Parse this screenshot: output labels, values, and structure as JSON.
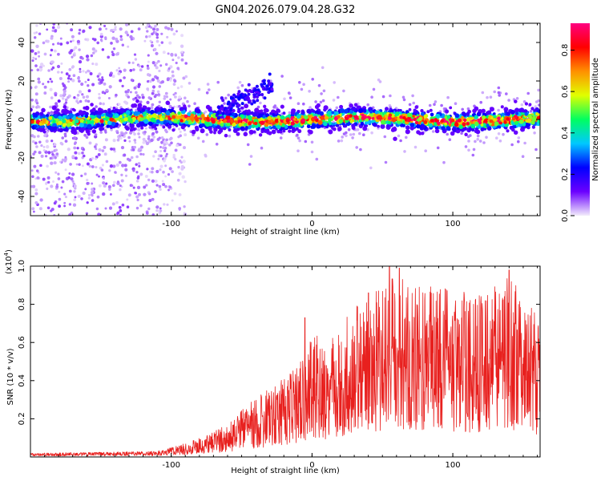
{
  "figure": {
    "title": "GN04.2026.079.04.28.G32"
  },
  "chart_data": [
    {
      "type": "heatmap",
      "name": "spectrogram",
      "xlabel": "Height of straight line (km)",
      "ylabel": "Frequency (Hz)",
      "xlim": [
        -200,
        162
      ],
      "ylim": [
        -50,
        50
      ],
      "xticks": [
        -100,
        0,
        100
      ],
      "xtick_labels": [
        "-100",
        "0",
        "100"
      ],
      "yticks": [
        -40,
        -20,
        0,
        20,
        40
      ],
      "ytick_labels": [
        "-40",
        "-20",
        "0",
        "20",
        "40"
      ],
      "band_center_hz": 0,
      "band_halfwidth_hz": 6,
      "noise_region_km": [
        -200,
        -95
      ],
      "colorbar": {
        "label": "Normalized spectral amplitude",
        "range": [
          0,
          0.93
        ],
        "ticks": [
          0,
          0.2,
          0.4,
          0.6,
          0.8
        ],
        "tick_labels": [
          "0.0",
          "0.2",
          "0.4",
          "0.6",
          "0.8"
        ],
        "colors": [
          "#f2ecfb",
          "#6b00ff",
          "#0000ff",
          "#00c8ff",
          "#00ff60",
          "#e0ff00",
          "#ff9000",
          "#ff0000",
          "#ff0080"
        ]
      }
    },
    {
      "type": "line",
      "name": "snr",
      "xlabel": "Height of straight line (km)",
      "ylabel": "SNR (10 * v/v)",
      "scale_label": "(x10",
      "scale_exponent": "4",
      "scale_close": ")",
      "xlim": [
        -200,
        162
      ],
      "ylim": [
        0,
        1.0
      ],
      "xticks": [
        -100,
        0,
        100
      ],
      "xtick_labels": [
        "-100",
        "0",
        "100"
      ],
      "yticks": [
        0.2,
        0.4,
        0.6,
        0.8,
        1.0
      ],
      "ytick_labels": [
        "0.2",
        "0.4",
        "0.6",
        "0.8",
        "1.0"
      ],
      "color": "#e8201e",
      "envelope": {
        "x": [
          -200,
          -150,
          -110,
          -95,
          -80,
          -60,
          -45,
          -30,
          -15,
          -5,
          0,
          10,
          20,
          40,
          60,
          80,
          100,
          120,
          140,
          162
        ],
        "y": [
          0.02,
          0.025,
          0.03,
          0.06,
          0.1,
          0.17,
          0.28,
          0.36,
          0.45,
          0.55,
          0.65,
          0.62,
          0.72,
          0.86,
          0.98,
          0.9,
          0.88,
          0.85,
          0.95,
          0.72
        ]
      },
      "peaks": [
        {
          "x": -5,
          "y": 0.73
        },
        {
          "x": 40,
          "y": 0.86
        },
        {
          "x": 55,
          "y": 1.0
        },
        {
          "x": 62,
          "y": 0.99
        },
        {
          "x": 140,
          "y": 0.98
        }
      ]
    }
  ]
}
